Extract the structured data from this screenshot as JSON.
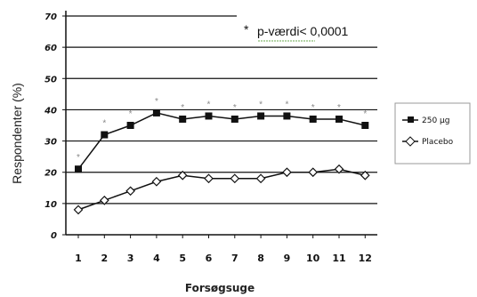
{
  "chart_data": {
    "type": "line",
    "xlabel": "Forsøgsuge",
    "ylabel": "Respondenter (%)",
    "x": [
      1,
      2,
      3,
      4,
      5,
      6,
      7,
      8,
      9,
      10,
      11,
      12
    ],
    "ylim": [
      0,
      70
    ],
    "yticks": [
      0,
      10,
      20,
      30,
      40,
      50,
      60,
      70
    ],
    "grid": true,
    "legend_position": "right",
    "annotation": "* p-værdi< 0,0001",
    "annotation_prefix": "*",
    "annotation_text": "p-værdi< 0,0001",
    "significance_marker": "*",
    "significant_weeks": [
      1,
      2,
      3,
      4,
      5,
      6,
      7,
      8,
      9,
      10,
      11,
      12
    ],
    "series": [
      {
        "name": "250 µg",
        "marker": "filled-square",
        "color": "#111111",
        "values": [
          21,
          32,
          35,
          39,
          37,
          38,
          37,
          38,
          38,
          37,
          37,
          35
        ]
      },
      {
        "name": "Placebo",
        "marker": "open-diamond",
        "color": "#111111",
        "values": [
          8,
          11,
          14,
          17,
          19,
          18,
          18,
          18,
          20,
          20,
          21,
          19
        ]
      }
    ]
  }
}
